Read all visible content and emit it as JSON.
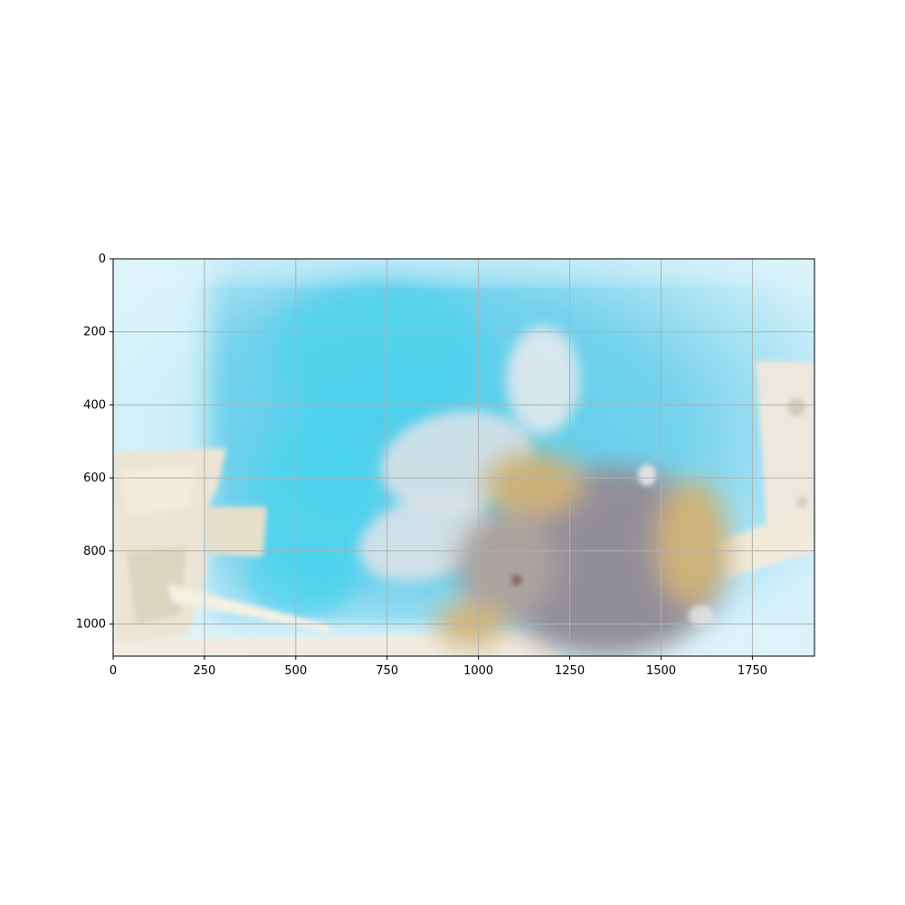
{
  "figure": {
    "kind": "image-plot",
    "image_subject": "blurry-bumblebee-photo",
    "colors": {
      "background": "#ffffff",
      "grid": "#b0b0b0",
      "axis": "#000000",
      "water_blue": "#3cc4e6",
      "water_light": "#a8e3f4",
      "plastic_beige": "#e6ddc8",
      "bee_body": "#7a7680",
      "bee_yellow": "#c6a45a"
    }
  },
  "chart_data": {
    "type": "image",
    "title": "",
    "xlabel": "",
    "ylabel": "",
    "xlim": [
      0,
      1920
    ],
    "ylim": [
      1088,
      0
    ],
    "grid": true,
    "xticks": [
      0,
      250,
      500,
      750,
      1000,
      1250,
      1500,
      1750
    ],
    "yticks": [
      0,
      200,
      400,
      600,
      800,
      1000
    ],
    "xtick_labels": [
      "0",
      "250",
      "500",
      "750",
      "1000",
      "1250",
      "1500",
      "1750"
    ],
    "ytick_labels": [
      "0",
      "200",
      "400",
      "600",
      "800",
      "1000"
    ]
  }
}
